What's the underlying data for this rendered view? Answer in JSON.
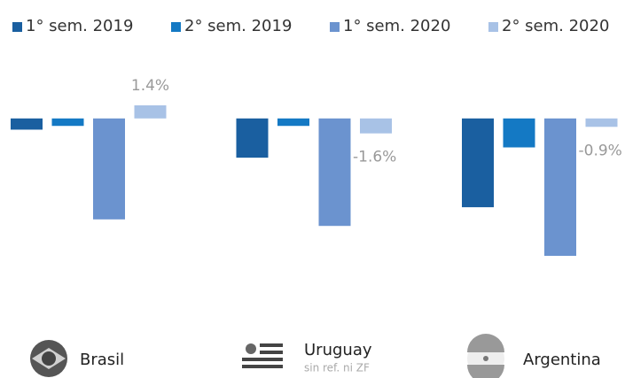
{
  "chart_data": {
    "type": "bar",
    "categories": [
      "Brasil",
      "Uruguay",
      "Argentina"
    ],
    "category_subtitles": [
      null,
      "sin ref. ni ZF",
      null
    ],
    "series": [
      {
        "name": "1° sem. 2019",
        "color": "#1a5fa0",
        "values": [
          -1.2,
          -4.2,
          -9.5
        ]
      },
      {
        "name": "2° sem. 2019",
        "color": "#1479c4",
        "values": [
          -0.8,
          -0.8,
          -3.1
        ]
      },
      {
        "name": "1° sem. 2020",
        "color": "#6b93cf",
        "values": [
          -10.8,
          -11.5,
          -14.7
        ]
      },
      {
        "name": "2° sem. 2020",
        "color": "#a8c2e6",
        "values": [
          1.4,
          -1.6,
          -0.9
        ],
        "value_labels": [
          "1.4%",
          "-1.6%",
          "-0.9%"
        ]
      }
    ]
  }
}
